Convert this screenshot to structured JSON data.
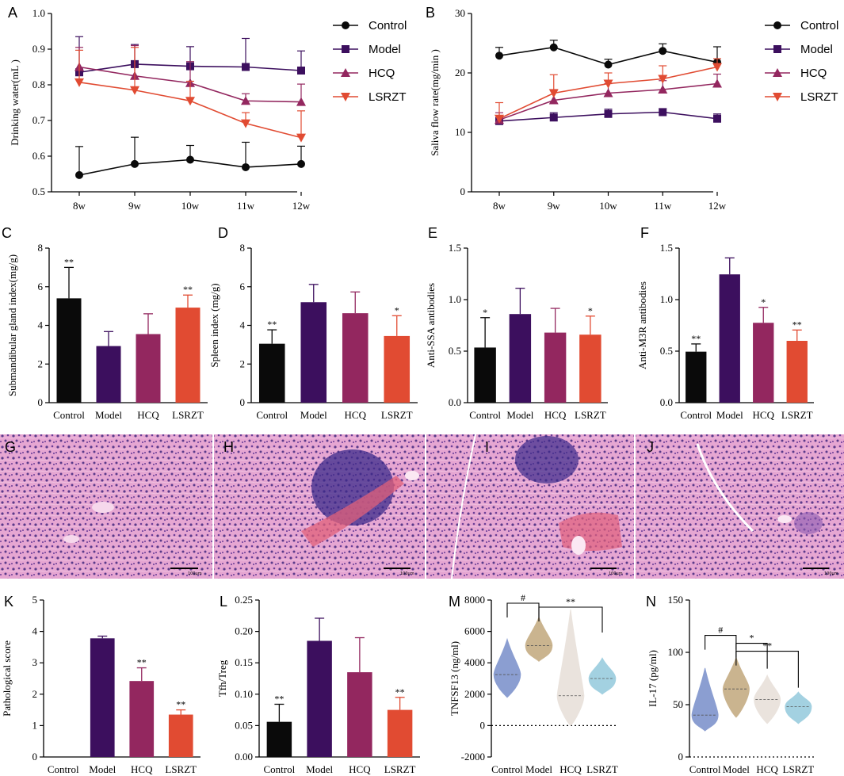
{
  "colors": {
    "Control": "#0a0a0a",
    "Model": "#3c0f5e",
    "HCQ": "#93275f",
    "LSRZT": "#e14b32",
    "M_Control": "#8599cf",
    "M_Model": "#c8b08a",
    "M_HCQ": "#e9e2dc",
    "M_LSRZT": "#9fcfe0"
  },
  "chart_data": [
    {
      "id": "A",
      "label": "A",
      "type": "line",
      "ylabel": "Drinking water(mL )",
      "ylim": [
        0.5,
        1.0
      ],
      "yticks": [
        "0.5",
        "0.6",
        "0.7",
        "0.8",
        "0.9",
        "1.0"
      ],
      "categories": [
        "8w",
        "9w",
        "10w",
        "11w",
        "12w"
      ],
      "series": [
        {
          "name": "Control",
          "values": [
            0.547,
            0.578,
            0.59,
            0.569,
            0.578
          ],
          "err": [
            0.08,
            0.075,
            0.04,
            0.07,
            0.05
          ]
        },
        {
          "name": "Model",
          "values": [
            0.835,
            0.858,
            0.852,
            0.85,
            0.84
          ],
          "err": [
            0.1,
            0.055,
            0.055,
            0.08,
            0.055
          ]
        },
        {
          "name": "HCQ",
          "values": [
            0.85,
            0.825,
            0.805,
            0.755,
            0.752
          ],
          "err": [
            0.055,
            0.085,
            0.06,
            0.02,
            0.05
          ]
        },
        {
          "name": "LSRZT",
          "values": [
            0.807,
            0.785,
            0.755,
            0.692,
            0.652
          ],
          "err": [
            0.09,
            0.12,
            0.055,
            0.03,
            0.075
          ]
        }
      ]
    },
    {
      "id": "B",
      "label": "B",
      "type": "line",
      "ylabel": "Saliva flow rate(mg/min )",
      "ylim": [
        0,
        30
      ],
      "yticks": [
        "0",
        "10",
        "20",
        "30"
      ],
      "categories": [
        "8w",
        "9w",
        "10w",
        "11w",
        "12w"
      ],
      "series": [
        {
          "name": "Control",
          "values": [
            22.9,
            24.3,
            21.4,
            23.7,
            21.8
          ],
          "err": [
            1.4,
            1.2,
            0.9,
            1.2,
            2.6
          ]
        },
        {
          "name": "Model",
          "values": [
            11.9,
            12.5,
            13.1,
            13.4,
            12.3
          ],
          "err": [
            0.9,
            0.8,
            0.8,
            0.6,
            0.8
          ]
        },
        {
          "name": "HCQ",
          "values": [
            12.1,
            15.4,
            16.6,
            17.2,
            18.2
          ],
          "err": [
            1.2,
            1.8,
            1.6,
            1.5,
            1.6
          ]
        },
        {
          "name": "LSRZT",
          "values": [
            12.3,
            16.6,
            18.2,
            19.0,
            21.0
          ],
          "err": [
            2.7,
            3.1,
            1.8,
            2.2,
            1.4
          ]
        }
      ]
    },
    {
      "id": "C",
      "label": "C",
      "type": "bar",
      "ylabel": "Submandibular gland index(mg/g)",
      "ylim": [
        0,
        8
      ],
      "yticks": [
        "0",
        "2",
        "4",
        "6",
        "8"
      ],
      "categories": [
        "Control",
        "Model",
        "HCQ",
        "LSRZT"
      ],
      "values": [
        5.4,
        2.93,
        3.55,
        4.92
      ],
      "err": [
        1.6,
        0.75,
        1.05,
        0.65
      ],
      "marks": [
        "**",
        "",
        "",
        "**"
      ]
    },
    {
      "id": "D",
      "label": "D",
      "type": "bar",
      "ylabel": "Spleen index (mg/g)",
      "ylim": [
        0,
        8
      ],
      "yticks": [
        "0",
        "2",
        "4",
        "6",
        "8"
      ],
      "categories": [
        "Control",
        "Model",
        "HCQ",
        "LSRZT"
      ],
      "values": [
        3.05,
        5.2,
        4.63,
        3.45
      ],
      "err": [
        0.72,
        0.92,
        1.1,
        1.05
      ],
      "marks": [
        "**",
        "",
        "",
        "*"
      ]
    },
    {
      "id": "E",
      "label": "E",
      "type": "bar",
      "ylabel": "Anti-SSA antibodies",
      "ylim": [
        0,
        1.5
      ],
      "yticks": [
        "0.0",
        "0.5",
        "1.0",
        "1.5"
      ],
      "categories": [
        "Control",
        "Model",
        "HCQ",
        "LSRZT"
      ],
      "values": [
        0.535,
        0.86,
        0.68,
        0.66
      ],
      "err": [
        0.29,
        0.25,
        0.235,
        0.18
      ],
      "marks": [
        "*",
        "",
        "",
        "*"
      ]
    },
    {
      "id": "F",
      "label": "F",
      "type": "bar",
      "ylabel": "Anti-M3R antibodies",
      "ylim": [
        0,
        1.5
      ],
      "yticks": [
        "0.0",
        "0.5",
        "1.0",
        "1.5"
      ],
      "categories": [
        "Control",
        "Model",
        "HCQ",
        "LSRZT"
      ],
      "values": [
        0.495,
        1.245,
        0.775,
        0.6
      ],
      "err": [
        0.075,
        0.16,
        0.15,
        0.105
      ],
      "marks": [
        "**",
        "",
        "*",
        "**"
      ]
    },
    {
      "id": "K",
      "label": "K",
      "type": "bar",
      "ylabel": "Pathological score",
      "ylim": [
        0,
        5
      ],
      "yticks": [
        "0",
        "1",
        "2",
        "3",
        "4",
        "5"
      ],
      "categories": [
        "Control",
        "Model",
        "HCQ",
        "LSRZT"
      ],
      "values": [
        0,
        3.78,
        2.42,
        1.35
      ],
      "err": [
        0,
        0.07,
        0.42,
        0.15
      ],
      "marks": [
        "",
        "",
        "**",
        "**"
      ]
    },
    {
      "id": "L",
      "label": "L",
      "type": "bar",
      "ylabel": "Tfh/Treg",
      "ylim": [
        0,
        0.25
      ],
      "yticks": [
        "0.00",
        "0.05",
        "0.10",
        "0.15",
        "0.20",
        "0.25"
      ],
      "categories": [
        "Control",
        "Model",
        "HCQ",
        "LSRZT"
      ],
      "values": [
        0.056,
        0.185,
        0.135,
        0.075
      ],
      "err": [
        0.028,
        0.036,
        0.055,
        0.02
      ],
      "marks": [
        "**",
        "",
        "",
        "**"
      ]
    },
    {
      "id": "M",
      "label": "M",
      "type": "violin",
      "ylabel": "TNFSF13   (ng/ml)",
      "ylim": [
        -2000,
        8000
      ],
      "yticks": [
        "-2000",
        "0",
        "2000",
        "4000",
        "6000",
        "8000"
      ],
      "categories": [
        "Control",
        "Model",
        "HCQ",
        "LSRZT"
      ],
      "distributions": [
        [
          1800,
          5500,
          3250
        ],
        [
          4100,
          6900,
          5100
        ],
        [
          0,
          7400,
          1900
        ],
        [
          2000,
          4300,
          3000
        ]
      ],
      "brackets": [
        {
          "from": 0,
          "to": 1,
          "text": "#"
        },
        {
          "from": 1,
          "to": 3,
          "text": "**"
        }
      ]
    },
    {
      "id": "N",
      "label": "N",
      "type": "violin",
      "ylabel": "IL-17   (pg/ml)",
      "ylim": [
        0,
        150
      ],
      "yticks": [
        "0",
        "50",
        "100",
        "150"
      ],
      "categories": [
        "Control",
        "Model",
        "HCQ",
        "LSRZT"
      ],
      "distributions": [
        [
          25,
          85,
          40
        ],
        [
          38,
          95,
          65
        ],
        [
          32,
          78,
          55
        ],
        [
          32,
          62,
          48
        ]
      ],
      "brackets": [
        {
          "from": 0,
          "to": 1,
          "text": "#"
        },
        {
          "from": 1,
          "to": 2,
          "text": "*"
        },
        {
          "from": 1,
          "to": 3,
          "text": "**"
        }
      ]
    }
  ],
  "histology": {
    "panels": [
      "G",
      "H",
      "I",
      "J"
    ],
    "scale_text": "100μm"
  }
}
